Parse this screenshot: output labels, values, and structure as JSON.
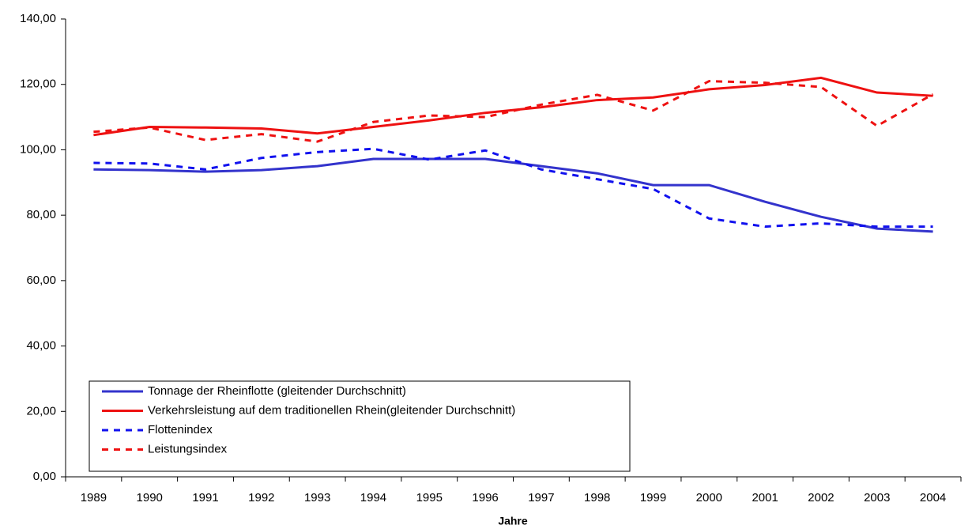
{
  "chart_data": {
    "type": "line",
    "x_label": "Jahre",
    "categories": [
      "1989",
      "1990",
      "1991",
      "1992",
      "1993",
      "1994",
      "1995",
      "1996",
      "1997",
      "1998",
      "1999",
      "2000",
      "2001",
      "2002",
      "2003",
      "2004"
    ],
    "ylim": [
      0,
      140
    ],
    "yticks": [
      {
        "value": 0,
        "label": "0,00"
      },
      {
        "value": 20,
        "label": "20,00"
      },
      {
        "value": 40,
        "label": "40,00"
      },
      {
        "value": 60,
        "label": "60,00"
      },
      {
        "value": 80,
        "label": "80,00"
      },
      {
        "value": 100,
        "label": "100,00"
      },
      {
        "value": 120,
        "label": "120,00"
      },
      {
        "value": 140,
        "label": "140,00"
      }
    ],
    "legend": "lower left",
    "series": [
      {
        "name": "Tonnage der Rheinflotte (gleitender Durchschnitt)",
        "color": "#3333cc",
        "dashed": false,
        "values": [
          94.0,
          93.8,
          93.3,
          93.8,
          95.0,
          97.2,
          97.2,
          97.2,
          95.0,
          92.8,
          89.2,
          89.2,
          84.1,
          79.5,
          75.9,
          75.0
        ]
      },
      {
        "name": "Verkehrsleistung auf dem traditionellen Rhein(gleitender Durchschnitt)",
        "color": "#ee1111",
        "dashed": false,
        "values": [
          104.5,
          107.0,
          106.8,
          106.5,
          105.0,
          107.0,
          109.0,
          111.3,
          113.0,
          115.2,
          116.0,
          118.5,
          119.8,
          122.0,
          117.5,
          116.5
        ]
      },
      {
        "name": "Flottenindex",
        "color": "#1111ee",
        "dashed": true,
        "values": [
          96.0,
          95.8,
          94.0,
          97.5,
          99.3,
          100.3,
          97.0,
          99.8,
          94.0,
          91.0,
          88.0,
          79.0,
          76.5,
          77.5,
          76.5,
          76.5
        ]
      },
      {
        "name": "Leistungsindex",
        "color": "#ee1111",
        "dashed": true,
        "values": [
          105.5,
          106.8,
          103.0,
          104.8,
          102.5,
          108.5,
          110.5,
          110.0,
          113.8,
          116.8,
          112.0,
          121.0,
          120.5,
          119.2,
          107.3,
          117.0
        ]
      }
    ]
  }
}
